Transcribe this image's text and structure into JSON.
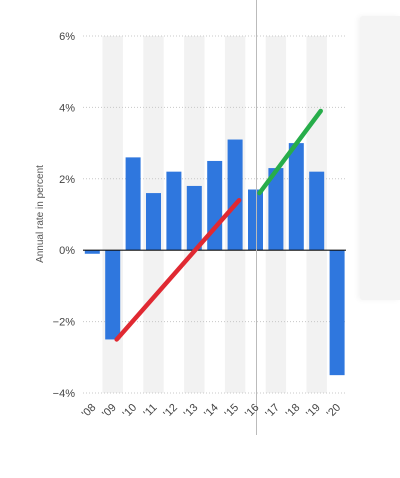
{
  "chart_data": {
    "type": "bar",
    "title": "",
    "xlabel": "",
    "ylabel": "Annual rate in percent",
    "categories": [
      "'08",
      "'09",
      "'10",
      "'11",
      "'12",
      "'13",
      "'14",
      "'15",
      "'16",
      "'17",
      "'18",
      "'19",
      "'20"
    ],
    "series": [
      {
        "values": [
          -0.1,
          -2.5,
          2.6,
          1.6,
          2.2,
          1.8,
          2.5,
          3.1,
          1.7,
          2.3,
          3.0,
          2.2,
          -3.5
        ]
      }
    ],
    "ylim": [
      -4,
      6
    ],
    "yticks": [
      -4,
      -2,
      0,
      2,
      4,
      6
    ],
    "ytick_labels": [
      "−4%",
      "−2%",
      "0%",
      "2%",
      "4%",
      "6%"
    ],
    "grid": true,
    "trend_lines": [
      {
        "color": "#e02932",
        "from": {
          "x": "'09",
          "y": -2.5
        },
        "to": {
          "x": "'15",
          "y": 1.4
        }
      },
      {
        "color": "#27ad4a",
        "from": {
          "x": "'16",
          "y": 1.6
        },
        "to": {
          "x": "'19",
          "y": 3.9
        }
      }
    ],
    "vertical_marker": "'16",
    "colors": {
      "bar": "#2f77de",
      "zero_line": "#111111",
      "grid": "#c8c8c8",
      "band": "#f2f2f2"
    }
  }
}
